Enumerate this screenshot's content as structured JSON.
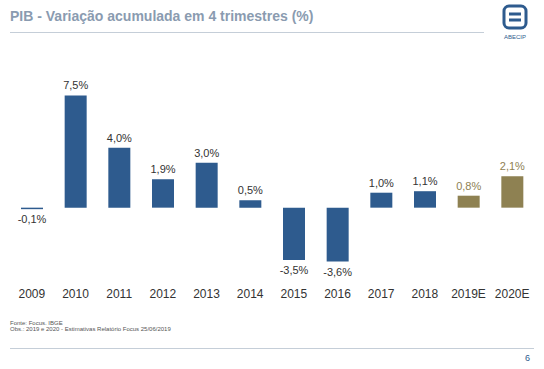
{
  "header": {
    "title": "PIB - Variação acumulada em 4 trimestres (%)",
    "logo": "ABECIP"
  },
  "chart_data": {
    "type": "bar",
    "categories": [
      "2009",
      "2010",
      "2011",
      "2012",
      "2013",
      "2014",
      "2015",
      "2016",
      "2017",
      "2018",
      "2019E",
      "2020E"
    ],
    "values": [
      -0.1,
      7.5,
      4.0,
      1.9,
      3.0,
      0.5,
      -3.5,
      -3.6,
      1.0,
      1.1,
      0.8,
      2.1
    ],
    "value_labels": [
      "-0,1%",
      "7,5%",
      "4,0%",
      "1,9%",
      "3,0%",
      "0,5%",
      "-3,5%",
      "-3,6%",
      "1,0%",
      "1,1%",
      "0,8%",
      "2,1%"
    ],
    "colors": [
      "#2e5b8e",
      "#2e5b8e",
      "#2e5b8e",
      "#2e5b8e",
      "#2e5b8e",
      "#2e5b8e",
      "#2e5b8e",
      "#2e5b8e",
      "#2e5b8e",
      "#2e5b8e",
      "#8e8152",
      "#8e8152"
    ],
    "ylim": [
      -4.5,
      9
    ],
    "data_labels": true,
    "tick_labels": "x",
    "grid": false
  },
  "footer": {
    "source": "Fonte: Focus. IBGE",
    "note": "Obs.: 2019 e 2020 - Estimativas Relatório Focus 25/06/2019",
    "page": "6"
  }
}
